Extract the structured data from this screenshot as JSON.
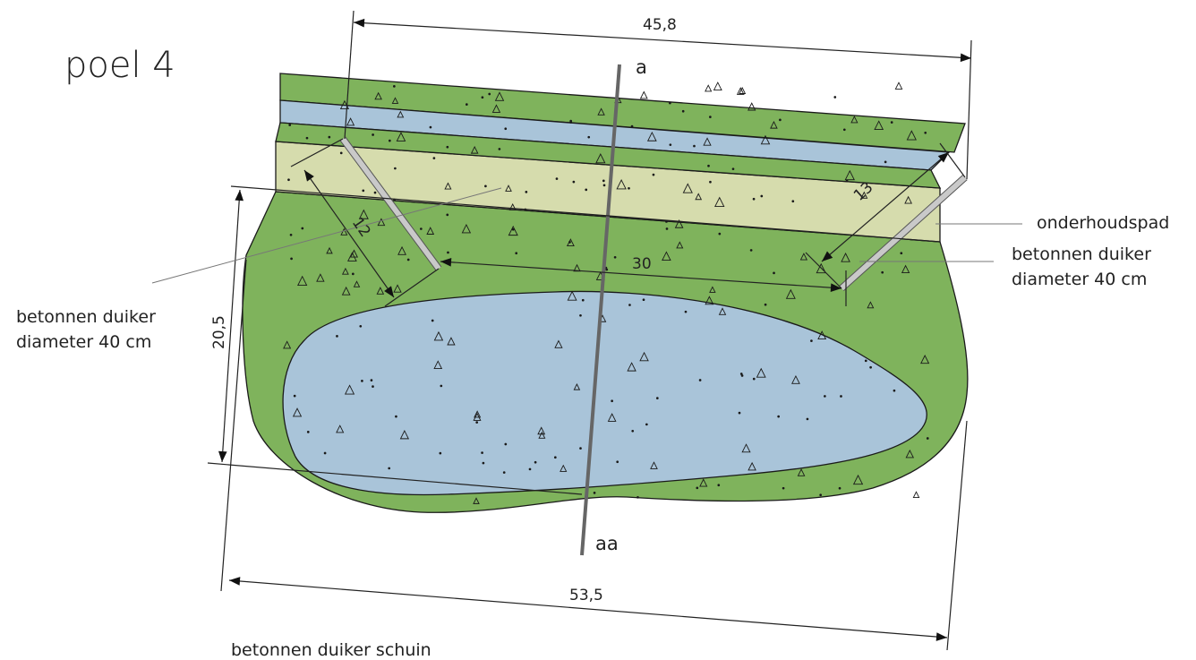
{
  "title": "poel 4",
  "labels": {
    "culvert_left_line1": "betonnen duiker",
    "culvert_left_line2": "diameter 40 cm",
    "culvert_right_line1": "betonnen duiker",
    "culvert_right_line2": "diameter 40 cm",
    "maintenance_path": "onderhoudspad",
    "culvert_oblique": "betonnen duiker schuin"
  },
  "section": {
    "top": "a",
    "bottom": "aa"
  },
  "dimensions": {
    "top_width": "45,8",
    "bottom_width": "53,5",
    "left_height": "20,5",
    "left_culvert": "12",
    "right_culvert": "13",
    "culvert_spacing": "30"
  },
  "colors": {
    "grass": "#7fb35c",
    "water": "#a9c4d9",
    "path": "#d6dcad",
    "culvert": "#b5b5b5",
    "section_line": "#666666"
  }
}
